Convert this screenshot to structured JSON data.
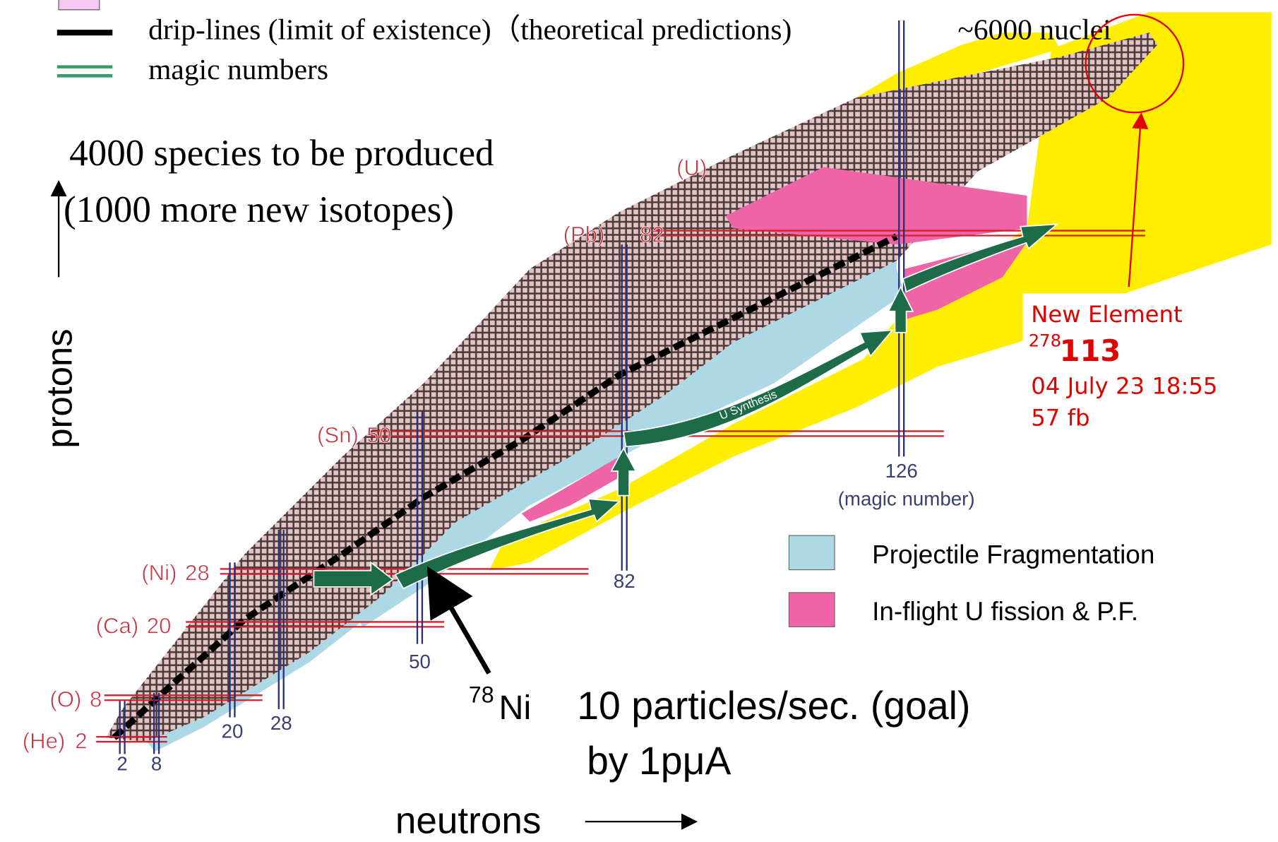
{
  "legend": {
    "drip_lines": "drip-lines (limit of existence)（theoretical predictions)",
    "total": "~6000 nuclei",
    "magic": "magic numbers"
  },
  "headline": [
    "4000 species to be produced",
    "(1000 more new isotopes)"
  ],
  "axes": {
    "y": "protons",
    "x": "neutrons"
  },
  "uranium": "(U)",
  "proton_magic": [
    {
      "element": "(Pb)",
      "number": "82"
    },
    {
      "element": "(Sn)",
      "number": "50"
    },
    {
      "element": "(Ni)",
      "number": "28"
    },
    {
      "element": "(Ca)",
      "number": "20"
    },
    {
      "element": "(O)",
      "number": "8"
    },
    {
      "element": "(He)",
      "number": "2"
    }
  ],
  "neutron_magic": [
    "2",
    "8",
    "20",
    "28",
    "50",
    "82",
    "126"
  ],
  "neutron_magic_note": "(magic number)",
  "path_label": "U Synthesis",
  "new_element": {
    "title": "New Element",
    "mass": "278",
    "z": "113",
    "date": "04 July 23 18:55",
    "cross_section": "57 fb"
  },
  "key": [
    {
      "label": "Projectile Fragmentation",
      "color": "#add8e6"
    },
    {
      "label": "In-flight U fission & P.F.",
      "color": "#ee64a6"
    }
  ],
  "target": {
    "mass": "78",
    "symbol": "Ni",
    "rate": "10 particles/sec. (goal)",
    "beam": "by 1pμA"
  }
}
